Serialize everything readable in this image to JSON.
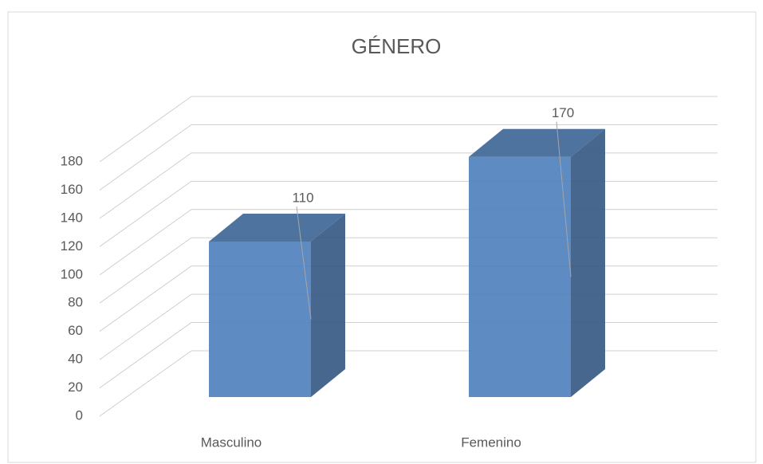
{
  "chart_data": {
    "type": "bar",
    "title": "GÉNERO",
    "categories": [
      "Masculino",
      "Femenino"
    ],
    "values": [
      110,
      170
    ],
    "color": "#4f81bd",
    "ylim": [
      0,
      180
    ],
    "yticks": [
      0,
      20,
      40,
      60,
      80,
      100,
      120,
      140,
      160,
      180
    ],
    "grid": true
  }
}
